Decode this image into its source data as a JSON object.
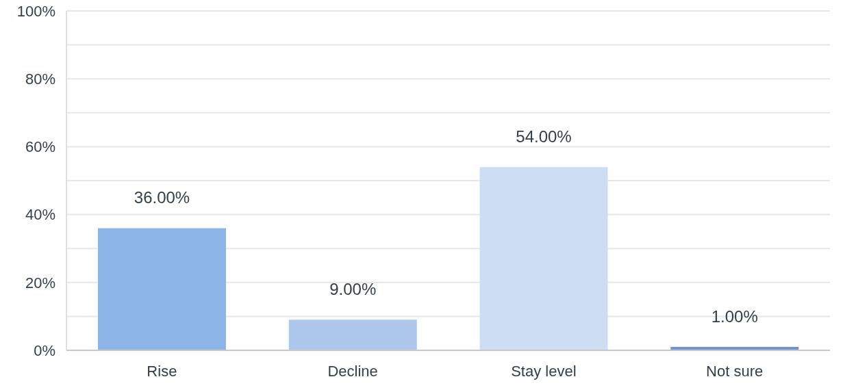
{
  "chart_data": {
    "type": "bar",
    "categories": [
      "Rise",
      "Decline",
      "Stay level",
      "Not sure"
    ],
    "values": [
      36,
      9,
      54,
      1
    ],
    "colors": [
      "#8db5e8",
      "#adc8ec",
      "#cddef2",
      "#7094d8"
    ],
    "value_labels": [
      "36.00%",
      "9.00%",
      "54.00%",
      "1.00%"
    ],
    "ylim": [
      0,
      100
    ],
    "yticks": [
      {
        "value": 0,
        "label": "0%"
      },
      {
        "value": 10,
        "label": null
      },
      {
        "value": 20,
        "label": "20%"
      },
      {
        "value": 30,
        "label": null
      },
      {
        "value": 40,
        "label": "40%"
      },
      {
        "value": 50,
        "label": null
      },
      {
        "value": 60,
        "label": "60%"
      },
      {
        "value": 70,
        "label": null
      },
      {
        "value": 80,
        "label": "80%"
      },
      {
        "value": 90,
        "label": null
      },
      {
        "value": 100,
        "label": "100%"
      }
    ],
    "grid": "y",
    "legend": false
  }
}
